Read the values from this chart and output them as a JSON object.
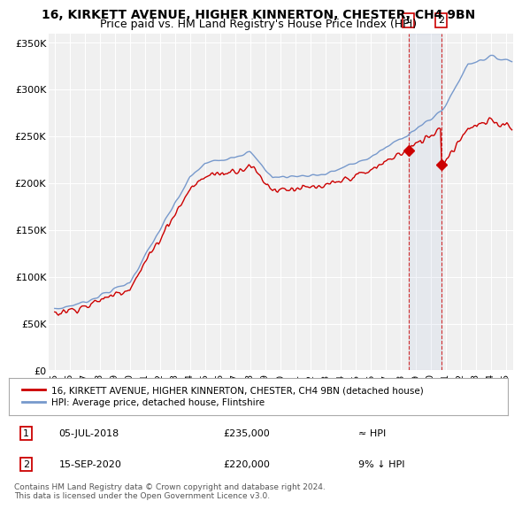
{
  "title": "16, KIRKETT AVENUE, HIGHER KINNERTON, CHESTER, CH4 9BN",
  "subtitle": "Price paid vs. HM Land Registry's House Price Index (HPI)",
  "ylim": [
    0,
    360000
  ],
  "yticks": [
    0,
    50000,
    100000,
    150000,
    200000,
    250000,
    300000,
    350000
  ],
  "ytick_labels": [
    "£0",
    "£50K",
    "£100K",
    "£150K",
    "£200K",
    "£250K",
    "£300K",
    "£350K"
  ],
  "hpi_color": "#7799cc",
  "price_color": "#cc0000",
  "sale1_year": 2018.54,
  "sale1_price": 235000,
  "sale2_year": 2020.71,
  "sale2_price": 220000,
  "legend_label1": "16, KIRKETT AVENUE, HIGHER KINNERTON, CHESTER, CH4 9BN (detached house)",
  "legend_label2": "HPI: Average price, detached house, Flintshire",
  "ann1_date": "05-JUL-2018",
  "ann1_price": "£235,000",
  "ann1_hpi": "≈ HPI",
  "ann2_date": "15-SEP-2020",
  "ann2_price": "£220,000",
  "ann2_hpi": "9% ↓ HPI",
  "footer": "Contains HM Land Registry data © Crown copyright and database right 2024.\nThis data is licensed under the Open Government Licence v3.0.",
  "background_color": "#ffffff",
  "plot_bg_color": "#f0f0f0",
  "grid_color": "#ffffff",
  "title_fontsize": 10,
  "subtitle_fontsize": 9
}
